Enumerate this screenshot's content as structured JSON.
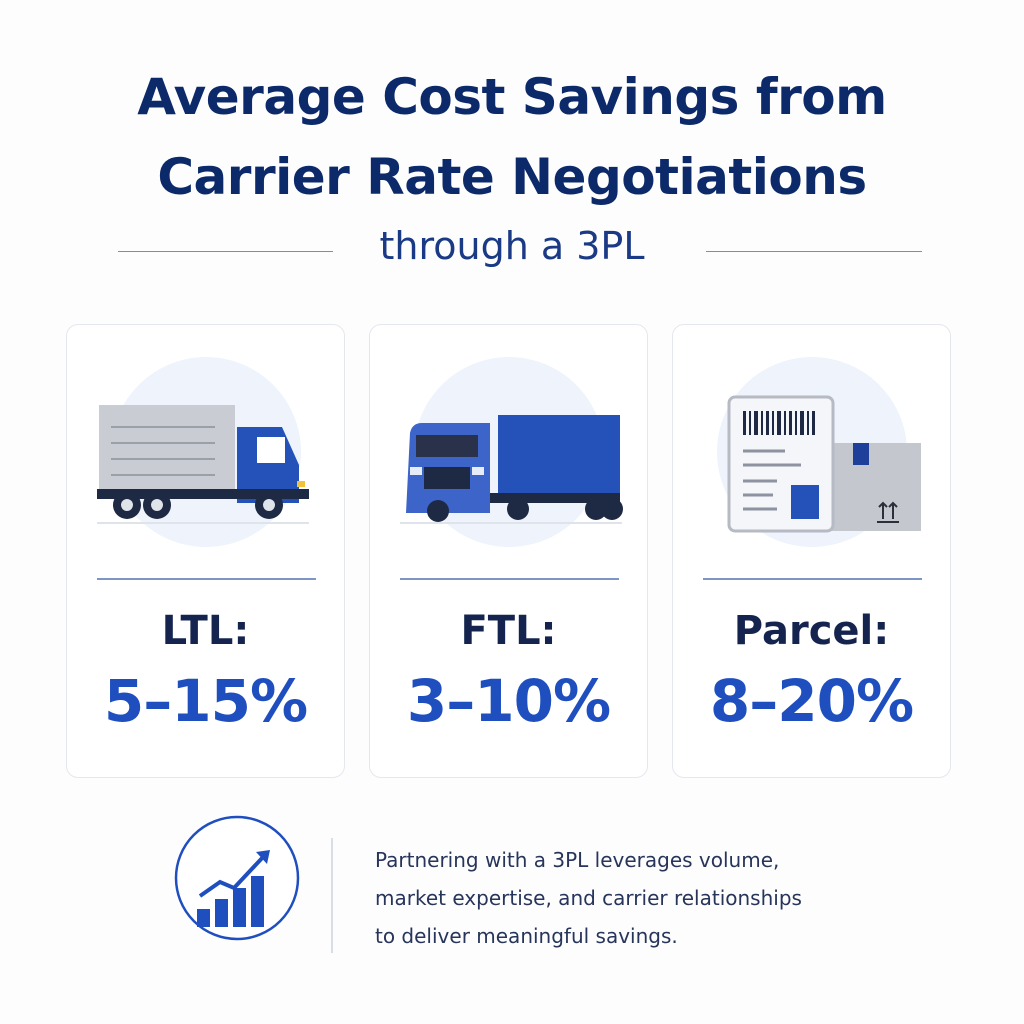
{
  "header": {
    "title_lines": [
      "Average Cost Savings from",
      "Carrier Rate Negotiations"
    ],
    "subtitle": "through a 3PL"
  },
  "cards": [
    {
      "label": "LTL:",
      "value": "5–15%"
    },
    {
      "label": "FTL:",
      "value": "3–10%"
    },
    {
      "label": "Parcel:",
      "value": "8–20%"
    }
  ],
  "footer": {
    "lines": [
      "Partnering with a 3PL leverages volume,",
      "market expertise, and carrier relationships",
      "to deliver meaningful savings."
    ]
  }
}
